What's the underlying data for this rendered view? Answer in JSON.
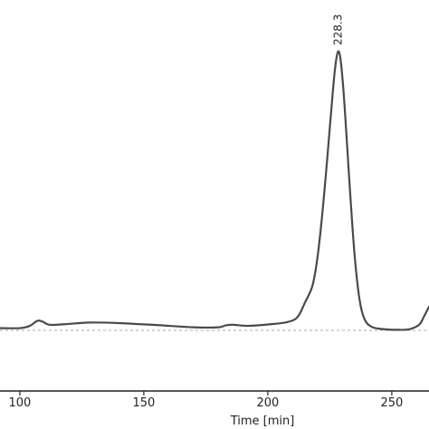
{
  "chart_data": {
    "type": "line",
    "xlabel": "Time [min]",
    "ylabel": "",
    "xlim": [
      92,
      265
    ],
    "x_ticks": [
      100,
      150,
      200,
      250
    ],
    "grid": false,
    "baseline_value": 0,
    "annotations": [
      {
        "text": "228.3",
        "x": 228.3
      }
    ],
    "series": [
      {
        "values": [
          {
            "x": 92,
            "y": 0.008
          },
          {
            "x": 100,
            "y": 0.008
          },
          {
            "x": 104,
            "y": 0.016
          },
          {
            "x": 107,
            "y": 0.034
          },
          {
            "x": 109,
            "y": 0.032
          },
          {
            "x": 112,
            "y": 0.02
          },
          {
            "x": 118,
            "y": 0.022
          },
          {
            "x": 128,
            "y": 0.028
          },
          {
            "x": 140,
            "y": 0.026
          },
          {
            "x": 155,
            "y": 0.019
          },
          {
            "x": 170,
            "y": 0.011
          },
          {
            "x": 180,
            "y": 0.011
          },
          {
            "x": 183,
            "y": 0.018
          },
          {
            "x": 186,
            "y": 0.02
          },
          {
            "x": 192,
            "y": 0.016
          },
          {
            "x": 200,
            "y": 0.021
          },
          {
            "x": 208,
            "y": 0.03
          },
          {
            "x": 212,
            "y": 0.048
          },
          {
            "x": 215,
            "y": 0.1
          },
          {
            "x": 218,
            "y": 0.16
          },
          {
            "x": 220,
            "y": 0.26
          },
          {
            "x": 222,
            "y": 0.42
          },
          {
            "x": 224,
            "y": 0.62
          },
          {
            "x": 225.5,
            "y": 0.78
          },
          {
            "x": 227,
            "y": 0.93
          },
          {
            "x": 228.3,
            "y": 1.0
          },
          {
            "x": 229.5,
            "y": 0.96
          },
          {
            "x": 231,
            "y": 0.8
          },
          {
            "x": 233,
            "y": 0.52
          },
          {
            "x": 235,
            "y": 0.27
          },
          {
            "x": 237,
            "y": 0.11
          },
          {
            "x": 239,
            "y": 0.04
          },
          {
            "x": 242,
            "y": 0.012
          },
          {
            "x": 247,
            "y": 0.004
          },
          {
            "x": 252,
            "y": 0.002
          },
          {
            "x": 257,
            "y": 0.004
          },
          {
            "x": 261,
            "y": 0.02
          },
          {
            "x": 263,
            "y": 0.05
          },
          {
            "x": 265,
            "y": 0.085
          }
        ]
      }
    ]
  },
  "colors": {
    "line": "#4a4a4a",
    "baseline": "#bbbbbb",
    "axis": "#222222",
    "text": "#222222"
  }
}
